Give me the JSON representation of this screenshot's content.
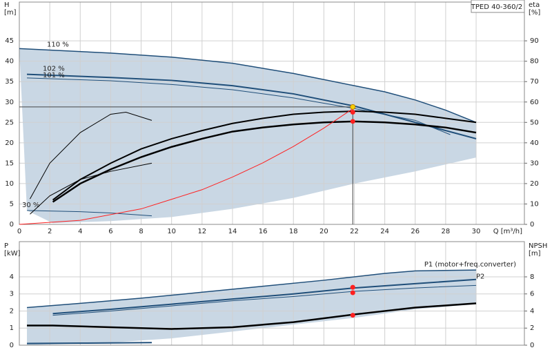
{
  "chart_data": [
    {
      "type": "line",
      "label": "TPED 40-360/2",
      "y_label": [
        "H",
        "[m]"
      ],
      "y2_label": [
        "eta",
        "[%]"
      ],
      "x_label": "Q [m³/h]",
      "xlim": [
        0,
        33.17
      ],
      "ylim": [
        0,
        54.5
      ],
      "y2lim": [
        0,
        109
      ],
      "xticks": [
        0,
        2,
        4,
        6,
        8,
        10,
        12,
        14,
        16,
        18,
        20,
        22,
        24,
        26,
        28,
        30
      ],
      "yticks": [
        0,
        5,
        10,
        15,
        20,
        25,
        30,
        35,
        40,
        45
      ],
      "y2ticks": [
        0,
        10,
        20,
        30,
        40,
        50,
        60,
        70,
        80,
        90
      ],
      "grid": true,
      "area": {
        "color": "#c9d7e4",
        "x": [
          0,
          6,
          10,
          14,
          18,
          22,
          24,
          26,
          28,
          30,
          30,
          26,
          22,
          18,
          14,
          10,
          6,
          2.2,
          0.5
        ],
        "values": [
          43.1,
          42,
          41,
          39.5,
          37,
          34,
          32.5,
          30.5,
          28,
          25,
          16.4,
          13,
          10,
          6.5,
          3.8,
          1.8,
          0.8,
          0.3,
          3.4
        ]
      },
      "series": [
        {
          "name": "110 %",
          "color": "#1f4e79",
          "width": 1.5,
          "x": [
            0,
            6,
            10,
            14,
            18,
            22,
            24,
            26,
            28,
            30
          ],
          "values": [
            43.1,
            42,
            41,
            39.5,
            37,
            34,
            32.5,
            30.5,
            28,
            25
          ]
        },
        {
          "name": "102 %",
          "color": "#1f4e79",
          "width": 2,
          "x": [
            0.5,
            6,
            10,
            14,
            18,
            22,
            26,
            30
          ],
          "values": [
            36.8,
            36,
            35.3,
            34,
            32,
            29,
            25,
            21
          ]
        },
        {
          "name": "101 %",
          "color": "#1f4e79",
          "width": 1,
          "x": [
            0.5,
            6,
            10,
            14,
            18,
            22,
            26,
            28.3
          ],
          "values": [
            35.9,
            35.2,
            34.3,
            33,
            31,
            28.4,
            25.5,
            22
          ]
        },
        {
          "name": "30 %",
          "color": "#1f4e79",
          "width": 1,
          "x": [
            0.5,
            4,
            6,
            8.7
          ],
          "values": [
            3.4,
            3.1,
            2.8,
            2.1
          ]
        },
        {
          "axis": "y2",
          "color": "#000",
          "width": 2.5,
          "x": [
            2.2,
            4,
            6,
            8,
            10,
            12,
            14,
            16,
            18,
            20,
            22,
            24,
            26,
            28,
            30
          ],
          "values": [
            11,
            20,
            27,
            33,
            38,
            42,
            45.5,
            47.5,
            49,
            50,
            50.5,
            50,
            49,
            47.5,
            45
          ]
        },
        {
          "axis": "y2",
          "color": "#000",
          "width": 2,
          "x": [
            2.2,
            4,
            6,
            8,
            10,
            12,
            14,
            16,
            18,
            20,
            22,
            24,
            26,
            28,
            30
          ],
          "values": [
            12,
            22,
            30,
            37,
            42,
            46,
            49.5,
            52,
            54,
            55,
            55.5,
            55,
            54,
            52,
            50
          ]
        },
        {
          "axis": "y2",
          "color": "#000",
          "width": 1,
          "x": [
            0.7,
            2,
            4,
            6,
            8.7
          ],
          "values": [
            5,
            14,
            22,
            26,
            30
          ]
        },
        {
          "axis": "y2",
          "color": "#000",
          "width": 1,
          "x": [
            0.7,
            2,
            4,
            6,
            7,
            8.7
          ],
          "values": [
            12.5,
            30,
            45,
            54,
            55,
            51
          ]
        },
        {
          "color": "#ff2020",
          "width": 1,
          "x": [
            0,
            4,
            8,
            12,
            14,
            16,
            18,
            20,
            22
          ],
          "values": [
            0,
            1,
            3.8,
            8.5,
            11.6,
            15.1,
            19.1,
            23.6,
            28.6
          ]
        },
        {
          "color": "#f5d000",
          "marker": true,
          "guide": true,
          "x": [
            21.9
          ],
          "values": [
            28.8
          ]
        },
        {
          "color": "#ff2020",
          "marker": true,
          "x": [
            21.9
          ],
          "values": [
            27.5
          ]
        },
        {
          "axis": "y2",
          "color": "#ff2020",
          "marker": true,
          "x": [
            21.9
          ],
          "values": [
            50.5
          ]
        }
      ]
    },
    {
      "type": "line",
      "y_label": [
        "P",
        "[kW]"
      ],
      "y2_label": [
        "NPSH",
        "[m]"
      ],
      "xlim": [
        0,
        33.17
      ],
      "ylim": [
        0,
        6.06
      ],
      "y2lim": [
        0,
        12.12
      ],
      "yticks": [
        0,
        1,
        2,
        3,
        4
      ],
      "y2ticks": [
        0,
        2,
        4,
        6,
        8
      ],
      "grid": true,
      "area": {
        "color": "#c9d7e4",
        "x": [
          0.5,
          4,
          8,
          12,
          16,
          20,
          24,
          26,
          30,
          30,
          26,
          22,
          18,
          14,
          10,
          6,
          2.2,
          0.5
        ],
        "values": [
          2.2,
          2.45,
          2.75,
          3.1,
          3.45,
          3.8,
          4.2,
          4.35,
          4.4,
          2.4,
          2.1,
          1.6,
          1.2,
          0.8,
          0.4,
          0.15,
          0.05,
          0
        ]
      },
      "series": [
        {
          "name": "P1 (motor+freq.converter)",
          "color": "#1f4e79",
          "width": 1.5,
          "x": [
            0.5,
            4,
            8,
            12,
            16,
            20,
            24,
            26,
            30
          ],
          "values": [
            2.2,
            2.45,
            2.75,
            3.1,
            3.45,
            3.8,
            4.2,
            4.35,
            4.4
          ]
        },
        {
          "name": "P2",
          "color": "#1f4e79",
          "width": 2,
          "x": [
            2.2,
            6,
            10,
            14,
            18,
            22,
            26,
            30
          ],
          "values": [
            1.85,
            2.1,
            2.4,
            2.7,
            3,
            3.35,
            3.6,
            3.85
          ]
        },
        {
          "color": "#1f4e79",
          "width": 1,
          "x": [
            2.2,
            6,
            10,
            14,
            18,
            22,
            26,
            30
          ],
          "values": [
            1.75,
            2,
            2.3,
            2.6,
            2.85,
            3.15,
            3.35,
            3.5
          ]
        },
        {
          "axis": "y2",
          "color": "#000",
          "width": 2.5,
          "x": [
            0.5,
            2.2,
            6,
            10,
            14,
            18,
            22,
            26,
            30
          ],
          "values": [
            2.3,
            2.3,
            2.1,
            1.9,
            2.1,
            2.7,
            3.6,
            4.4,
            4.9
          ]
        },
        {
          "color": "#1f4e79",
          "width": 2,
          "x": [
            0.5,
            4,
            8.7
          ],
          "values": [
            0.1,
            0.12,
            0.15
          ]
        },
        {
          "color": "#ff2020",
          "marker": true,
          "x": [
            21.9,
            21.9
          ],
          "values": [
            3.39,
            3.07
          ]
        },
        {
          "axis": "y2",
          "color": "#ff2020",
          "marker": true,
          "x": [
            21.9
          ],
          "values": [
            3.5
          ]
        }
      ]
    }
  ]
}
